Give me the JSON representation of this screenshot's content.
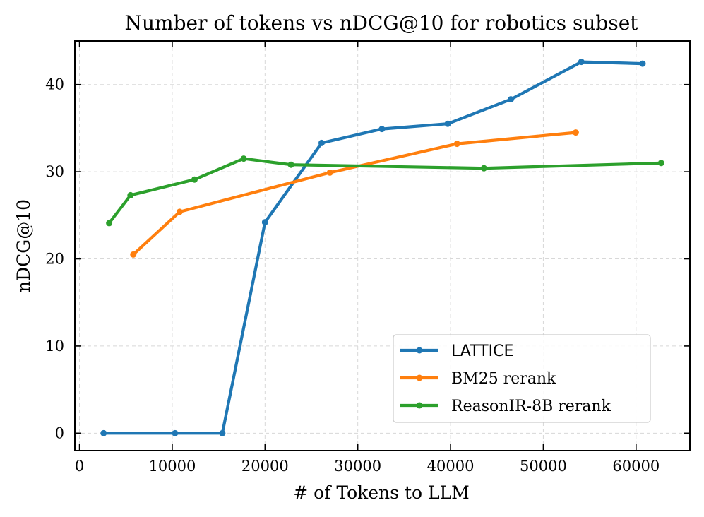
{
  "chart_data": {
    "type": "line",
    "title": "Number of tokens vs nDCG@10 for robotics subset",
    "xlabel": "# of Tokens to LLM",
    "ylabel": "nDCG@10",
    "xlim": [
      -500,
      65800
    ],
    "ylim": [
      -2,
      45
    ],
    "x_ticks": [
      0,
      10000,
      20000,
      30000,
      40000,
      50000,
      60000
    ],
    "x_tick_labels": [
      "0",
      "10000",
      "20000",
      "30000",
      "40000",
      "50000",
      "60000"
    ],
    "y_ticks": [
      0,
      10,
      20,
      30,
      40
    ],
    "y_tick_labels": [
      "0",
      "10",
      "20",
      "30",
      "40"
    ],
    "grid": true,
    "legend_position": "lower-right",
    "series": [
      {
        "name": "LATTICE",
        "color": "#1f77b4",
        "x": [
          2600,
          10300,
          15400,
          20000,
          26100,
          32600,
          39700,
          46500,
          54100,
          60700
        ],
        "y": [
          0,
          0,
          0,
          24.2,
          33.3,
          34.9,
          35.5,
          38.3,
          42.6,
          42.4
        ]
      },
      {
        "name": "BM25 rerank",
        "color": "#ff7f0e",
        "x": [
          5800,
          10800,
          27000,
          40700,
          53500
        ],
        "y": [
          20.5,
          25.4,
          29.9,
          33.2,
          34.5
        ]
      },
      {
        "name": "ReasonIR-8B rerank",
        "color": "#2ca02c",
        "x": [
          3200,
          5500,
          12400,
          17700,
          22800,
          43600,
          62700
        ],
        "y": [
          24.1,
          27.3,
          29.1,
          31.5,
          30.8,
          30.4,
          31.0
        ]
      }
    ]
  }
}
